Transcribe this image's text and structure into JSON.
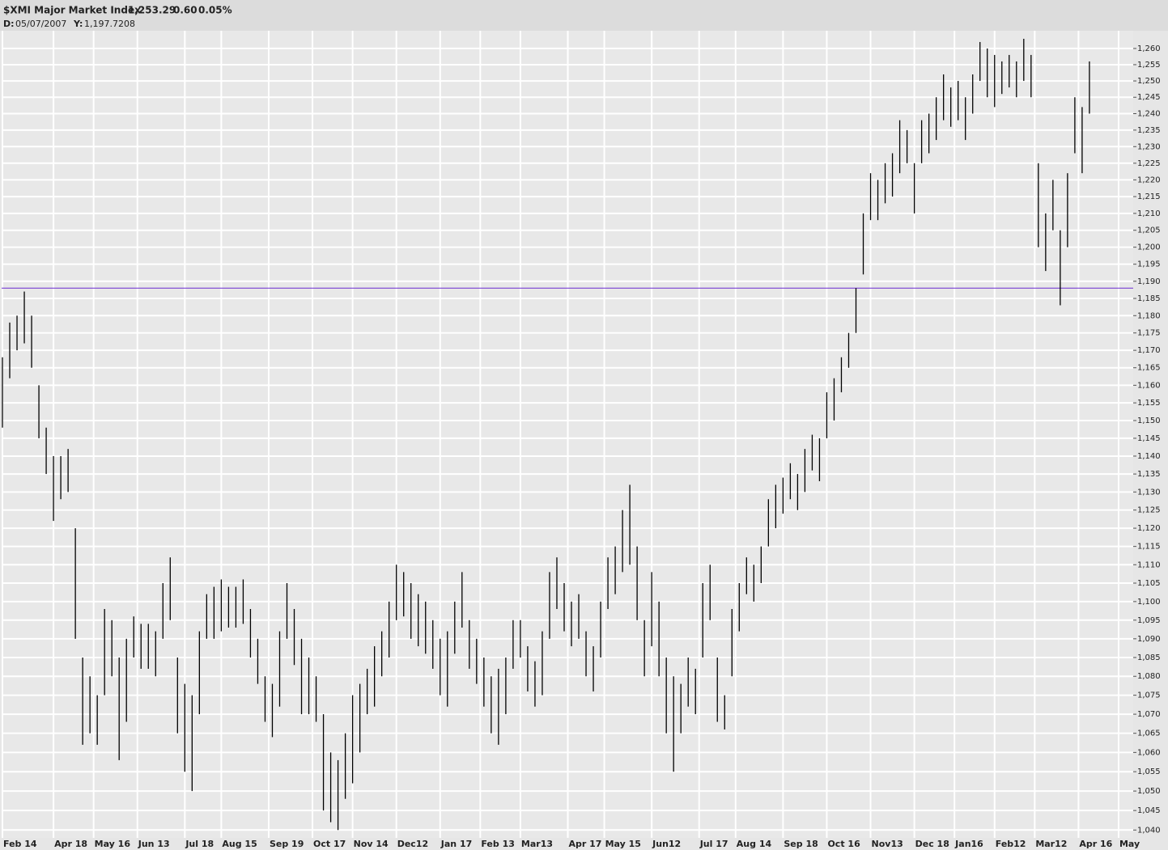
{
  "chart_data": {
    "type": "hl",
    "header": {
      "title": "$XMI Major Market Index",
      "last": "1,253.29",
      "change": "0.60",
      "change_pct": "0.05%",
      "date_label": "D:",
      "date": "05/07/2007",
      "y_label": "Y:",
      "y_value": "1,197.7208"
    },
    "change_color": "#00b000",
    "color": "#000000",
    "log_scale": true,
    "grid": true,
    "reference_line": 1188,
    "reference_color": "#6a2ad0",
    "xlim": [
      0,
      155
    ],
    "xticks": [
      {
        "value": 0,
        "label": "Feb 14"
      },
      {
        "value": 7,
        "label": "Apr 18"
      },
      {
        "value": 12.5,
        "label": "May 16"
      },
      {
        "value": 18.5,
        "label": "Jun 13"
      },
      {
        "value": 25,
        "label": "Jul 18"
      },
      {
        "value": 30,
        "label": "Aug 15"
      },
      {
        "value": 36.5,
        "label": "Sep 19"
      },
      {
        "value": 42.5,
        "label": "Oct 17"
      },
      {
        "value": 48,
        "label": "Nov 14"
      },
      {
        "value": 54,
        "label": "Dec12"
      },
      {
        "value": 60,
        "label": "Jan 17"
      },
      {
        "value": 65.5,
        "label": "Feb 13"
      },
      {
        "value": 71,
        "label": "Mar13"
      },
      {
        "value": 77.5,
        "label": "Apr 17"
      },
      {
        "value": 82.5,
        "label": "May 15"
      },
      {
        "value": 89,
        "label": "Jun12"
      },
      {
        "value": 95.5,
        "label": "Jul 17"
      },
      {
        "value": 100.5,
        "label": "Aug 14"
      },
      {
        "value": 107,
        "label": "Sep 18"
      },
      {
        "value": 113,
        "label": "Oct 16"
      },
      {
        "value": 119,
        "label": "Nov13"
      },
      {
        "value": 125,
        "label": "Dec 18"
      },
      {
        "value": 130.5,
        "label": "Jan16"
      },
      {
        "value": 136,
        "label": "Feb12"
      },
      {
        "value": 141.5,
        "label": "Mar12"
      },
      {
        "value": 147.5,
        "label": "Apr 16"
      },
      {
        "value": 153,
        "label": "May"
      }
    ],
    "ylim": [
      1038,
      1265.5
    ],
    "yticks": [
      {
        "value": 1040,
        "label": "1,040"
      },
      {
        "value": 1045,
        "label": "1,045"
      },
      {
        "value": 1050,
        "label": "1,050"
      },
      {
        "value": 1055,
        "label": "1,055"
      },
      {
        "value": 1060,
        "label": "1,060"
      },
      {
        "value": 1065,
        "label": "1,065"
      },
      {
        "value": 1070,
        "label": "1,070"
      },
      {
        "value": 1075,
        "label": "1,075"
      },
      {
        "value": 1080,
        "label": "1,080"
      },
      {
        "value": 1085,
        "label": "1,085"
      },
      {
        "value": 1090,
        "label": "1,090"
      },
      {
        "value": 1095,
        "label": "1,095"
      },
      {
        "value": 1100,
        "label": "1,100"
      },
      {
        "value": 1105,
        "label": "1,105"
      },
      {
        "value": 1110,
        "label": "1,110"
      },
      {
        "value": 1115,
        "label": "1,115"
      },
      {
        "value": 1120,
        "label": "1,120"
      },
      {
        "value": 1125,
        "label": "1,125"
      },
      {
        "value": 1130,
        "label": "1,130"
      },
      {
        "value": 1135,
        "label": "1,135"
      },
      {
        "value": 1140,
        "label": "1,140"
      },
      {
        "value": 1145,
        "label": "1,145"
      },
      {
        "value": 1150,
        "label": "1,150"
      },
      {
        "value": 1155,
        "label": "1,155"
      },
      {
        "value": 1160,
        "label": "1,160"
      },
      {
        "value": 1165,
        "label": "1,165"
      },
      {
        "value": 1170,
        "label": "1,170"
      },
      {
        "value": 1175,
        "label": "1,175"
      },
      {
        "value": 1180,
        "label": "1,180"
      },
      {
        "value": 1185,
        "label": "1,185"
      },
      {
        "value": 1190,
        "label": "1,190"
      },
      {
        "value": 1195,
        "label": "1,195"
      },
      {
        "value": 1200,
        "label": "1,200"
      },
      {
        "value": 1205,
        "label": "1,205"
      },
      {
        "value": 1210,
        "label": "1,210"
      },
      {
        "value": 1215,
        "label": "1,215"
      },
      {
        "value": 1220,
        "label": "1,220"
      },
      {
        "value": 1225,
        "label": "1,225"
      },
      {
        "value": 1230,
        "label": "1,230"
      },
      {
        "value": 1235,
        "label": "1,235"
      },
      {
        "value": 1240,
        "label": "1,240"
      },
      {
        "value": 1245,
        "label": "1,245"
      },
      {
        "value": 1250,
        "label": "1,250"
      },
      {
        "value": 1255,
        "label": "1,255"
      },
      {
        "value": 1260,
        "label": "1,260"
      }
    ],
    "high": [
      1168,
      1178,
      1180,
      1187,
      1180,
      1160,
      1148,
      1140,
      1140,
      1142,
      1120,
      1085,
      1080,
      1075,
      1098,
      1095,
      1085,
      1090,
      1096,
      1094,
      1094,
      1092,
      1105,
      1112,
      1085,
      1078,
      1075,
      1092,
      1102,
      1104,
      1106,
      1104,
      1104,
      1106,
      1098,
      1090,
      1080,
      1078,
      1092,
      1105,
      1098,
      1090,
      1085,
      1080,
      1070,
      1060,
      1058,
      1065,
      1075,
      1078,
      1082,
      1088,
      1092,
      1100,
      1110,
      1108,
      1105,
      1102,
      1100,
      1095,
      1090,
      1092,
      1100,
      1108,
      1095,
      1090,
      1085,
      1080,
      1082,
      1085,
      1095,
      1095,
      1088,
      1084,
      1092,
      1108,
      1112,
      1105,
      1100,
      1102,
      1092,
      1088,
      1100,
      1112,
      1115,
      1125,
      1132,
      1115,
      1095,
      1108,
      1100,
      1085,
      1080,
      1078,
      1085,
      1082,
      1105,
      1110,
      1085,
      1075,
      1098,
      1105,
      1112,
      1110,
      1115,
      1128,
      1132,
      1134,
      1138,
      1135,
      1142,
      1146,
      1145,
      1158,
      1162,
      1168,
      1175,
      1188,
      1210,
      1222,
      1220,
      1225,
      1228,
      1238,
      1235,
      1225,
      1238,
      1240,
      1245,
      1252,
      1248,
      1250,
      1245,
      1252,
      1262,
      1260,
      1258,
      1256,
      1258,
      1256,
      1263,
      1258,
      1225,
      1210,
      1220,
      1205,
      1222,
      1245,
      1242,
      1256
    ],
    "low": [
      1148,
      1162,
      1170,
      1172,
      1165,
      1145,
      1135,
      1122,
      1128,
      1130,
      1090,
      1062,
      1065,
      1062,
      1075,
      1080,
      1058,
      1068,
      1085,
      1082,
      1082,
      1080,
      1090,
      1095,
      1065,
      1055,
      1050,
      1070,
      1090,
      1090,
      1092,
      1093,
      1093,
      1094,
      1085,
      1078,
      1068,
      1064,
      1072,
      1090,
      1083,
      1070,
      1070,
      1068,
      1045,
      1042,
      1040,
      1048,
      1052,
      1060,
      1070,
      1072,
      1080,
      1085,
      1095,
      1096,
      1090,
      1088,
      1086,
      1082,
      1075,
      1072,
      1086,
      1093,
      1082,
      1078,
      1072,
      1065,
      1062,
      1070,
      1082,
      1085,
      1076,
      1072,
      1075,
      1090,
      1098,
      1092,
      1088,
      1090,
      1080,
      1076,
      1085,
      1098,
      1102,
      1108,
      1110,
      1095,
      1080,
      1088,
      1080,
      1065,
      1055,
      1065,
      1072,
      1070,
      1085,
      1095,
      1068,
      1066,
      1080,
      1092,
      1102,
      1100,
      1105,
      1115,
      1120,
      1124,
      1128,
      1125,
      1130,
      1136,
      1133,
      1145,
      1150,
      1158,
      1165,
      1175,
      1192,
      1208,
      1208,
      1213,
      1215,
      1222,
      1225,
      1210,
      1225,
      1228,
      1232,
      1238,
      1236,
      1238,
      1232,
      1240,
      1250,
      1245,
      1242,
      1246,
      1248,
      1245,
      1250,
      1245,
      1200,
      1193,
      1205,
      1183,
      1200,
      1228,
      1222,
      1240
    ]
  }
}
